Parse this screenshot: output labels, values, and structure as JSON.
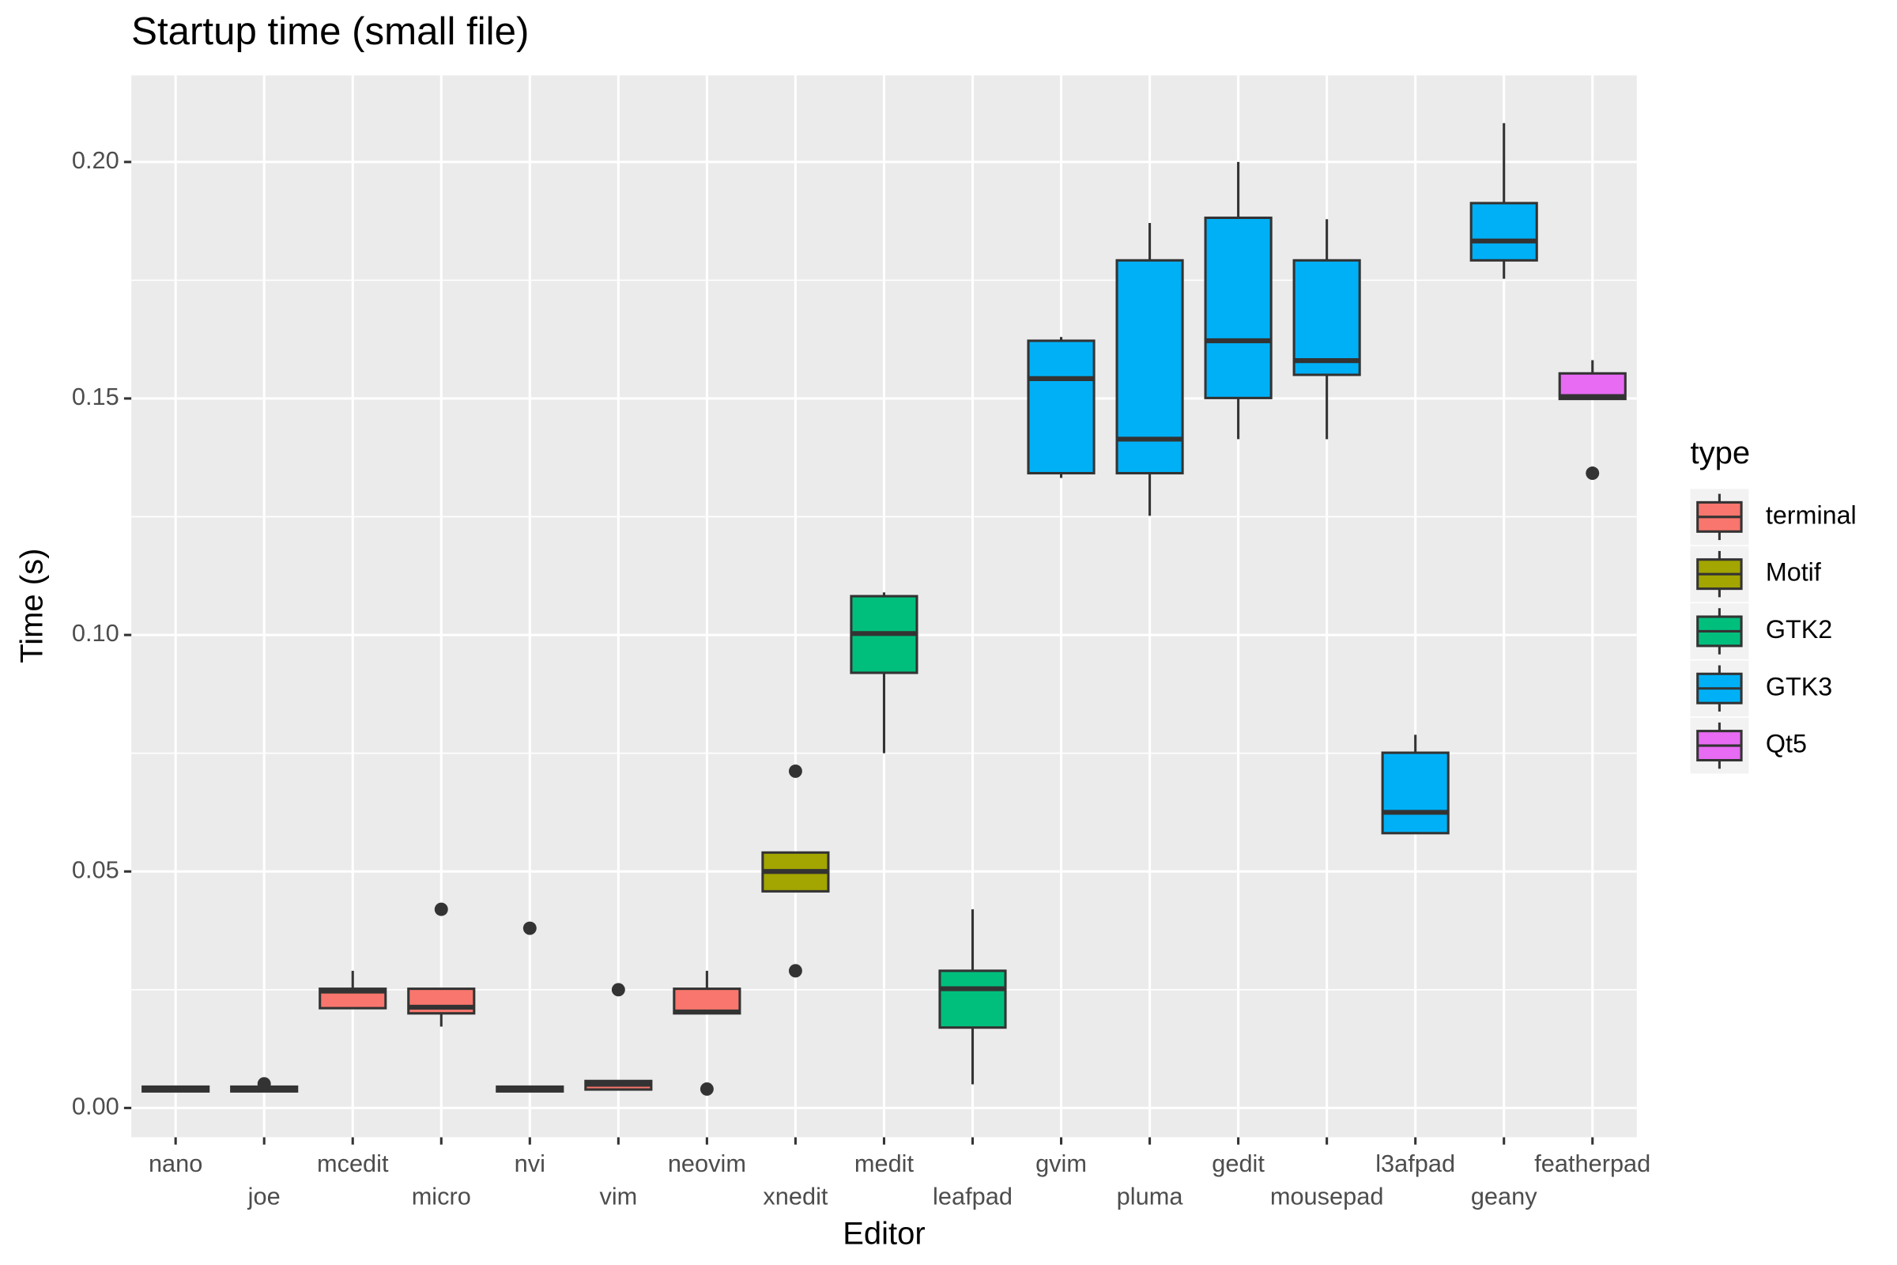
{
  "chart_data": {
    "type": "box",
    "title": "Startup time (small file)",
    "x_label": "Editor",
    "y_label": "Time (s)",
    "legend_title": "type",
    "categories": [
      "nano",
      "joe",
      "mcedit",
      "micro",
      "nvi",
      "vim",
      "neovim",
      "xnedit",
      "medit",
      "leafpad",
      "gvim",
      "pluma",
      "gedit",
      "mousepad",
      "l3afpad",
      "geany",
      "featherpad"
    ],
    "ylim": [
      -0.0062,
      0.2183
    ],
    "yticks": [
      {
        "value": 0,
        "label": "0.00"
      },
      0.05,
      {
        "value": 0.1,
        "label": "0.10"
      },
      0.15,
      {
        "value": 0.2,
        "label": "0.20"
      }
    ],
    "grid": true,
    "series": [
      {
        "name": "terminal",
        "color": "#F8766D",
        "values": [
          {
            "min": 0.0035,
            "q1": 0.0035,
            "median": 0.004,
            "q3": 0.0045,
            "max": 0.0045,
            "outliers": []
          },
          {
            "min": 0.0035,
            "q1": 0.0035,
            "median": 0.004,
            "q3": 0.0045,
            "max": 0.0045,
            "outliers": [
              0.0051
            ]
          },
          {
            "min": 0.0211,
            "q1": 0.0211,
            "median": 0.0247,
            "q3": 0.0252,
            "max": 0.029,
            "outliers": []
          },
          {
            "min": 0.0172,
            "q1": 0.02,
            "median": 0.0213,
            "q3": 0.0252,
            "max": 0.0252,
            "outliers": [
              0.042
            ]
          },
          {
            "min": 0.0035,
            "q1": 0.0035,
            "median": 0.004,
            "q3": 0.0045,
            "max": 0.0045,
            "outliers": [
              0.038
            ]
          },
          {
            "min": 0.0039,
            "q1": 0.0039,
            "median": 0.005,
            "q3": 0.0057,
            "max": 0.0057,
            "outliers": [
              0.025
            ]
          },
          {
            "min": 0.02,
            "q1": 0.02,
            "median": 0.0203,
            "q3": 0.0252,
            "max": 0.029,
            "outliers": [
              0.004
            ]
          },
          null,
          null,
          null,
          null,
          null,
          null,
          null,
          null,
          null,
          null
        ]
      },
      {
        "name": "Motif",
        "color": "#A3A500",
        "values": [
          null,
          null,
          null,
          null,
          null,
          null,
          null,
          {
            "min": 0.0458,
            "q1": 0.0458,
            "median": 0.05,
            "q3": 0.054,
            "max": 0.054,
            "outliers": [
              0.0712,
              0.029
            ]
          },
          null,
          null,
          null,
          null,
          null,
          null,
          null,
          null,
          null
        ]
      },
      {
        "name": "GTK2",
        "color": "#00BF7D",
        "values": [
          null,
          null,
          null,
          null,
          null,
          null,
          null,
          null,
          {
            "min": 0.075,
            "q1": 0.092,
            "median": 0.1003,
            "q3": 0.1082,
            "max": 0.109,
            "outliers": []
          },
          {
            "min": 0.005,
            "q1": 0.017,
            "median": 0.0252,
            "q3": 0.029,
            "max": 0.042,
            "outliers": []
          },
          null,
          null,
          null,
          null,
          null,
          null,
          null
        ]
      },
      {
        "name": "GTK3",
        "color": "#00B0F6",
        "values": [
          null,
          null,
          null,
          null,
          null,
          null,
          null,
          null,
          null,
          null,
          {
            "min": 0.1332,
            "q1": 0.1342,
            "median": 0.1542,
            "q3": 0.1622,
            "max": 0.163,
            "outliers": []
          },
          {
            "min": 0.1252,
            "q1": 0.1342,
            "median": 0.1414,
            "q3": 0.1792,
            "max": 0.1871,
            "outliers": []
          },
          {
            "min": 0.1414,
            "q1": 0.1501,
            "median": 0.1622,
            "q3": 0.1882,
            "max": 0.2,
            "outliers": []
          },
          {
            "min": 0.1414,
            "q1": 0.155,
            "median": 0.158,
            "q3": 0.1792,
            "max": 0.1879,
            "outliers": []
          },
          {
            "min": 0.0581,
            "q1": 0.0581,
            "median": 0.0625,
            "q3": 0.0751,
            "max": 0.0789,
            "outliers": []
          },
          {
            "min": 0.1753,
            "q1": 0.1792,
            "median": 0.1833,
            "q3": 0.1913,
            "max": 0.2082,
            "outliers": []
          },
          null
        ]
      },
      {
        "name": "Qt5",
        "color": "#E76BF3",
        "values": [
          null,
          null,
          null,
          null,
          null,
          null,
          null,
          null,
          null,
          null,
          null,
          null,
          null,
          null,
          null,
          null,
          {
            "min": 0.1499,
            "q1": 0.1499,
            "median": 0.1504,
            "q3": 0.1553,
            "max": 0.1581,
            "outliers": [
              0.1342
            ]
          }
        ]
      }
    ]
  }
}
